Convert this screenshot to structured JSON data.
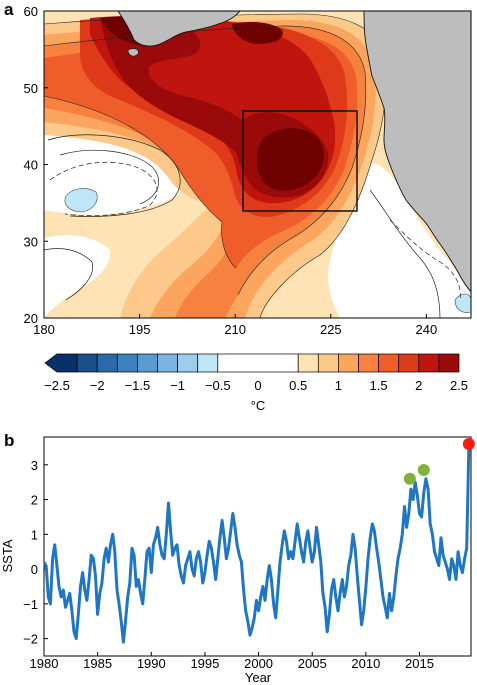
{
  "chart_data": [
    {
      "panel": "a",
      "type": "heatmap",
      "title": "",
      "xlabel": "",
      "ylabel": "",
      "xlim": [
        180,
        247
      ],
      "ylim": [
        20,
        60
      ],
      "x_ticks": [
        "180",
        "195",
        "210",
        "225",
        "240"
      ],
      "y_ticks": [
        "20",
        "30",
        "40",
        "50",
        "60"
      ],
      "box": {
        "lon": [
          213,
          233
        ],
        "lat": [
          34,
          47
        ]
      },
      "colorbar": {
        "label": "°C",
        "tick_labels": [
          "−2.5",
          "−2",
          "−1.5",
          "−1",
          "−0.5",
          "0",
          "0.5",
          "1",
          "1.5",
          "2",
          "2.5"
        ],
        "levels": [
          -2.5,
          -2.25,
          -2,
          -1.75,
          -1.5,
          -1.25,
          -1,
          -0.75,
          -0.5,
          0.5,
          0.75,
          1,
          1.25,
          1.5,
          1.75,
          2,
          2.25,
          2.5
        ],
        "colors": [
          "#08306b",
          "#1b4f8a",
          "#2b6aa8",
          "#3d82bf",
          "#5a9bd1",
          "#7bb4e0",
          "#9dcdee",
          "#bfe6f7",
          "#ffffff",
          "#fee3b4",
          "#fdc98a",
          "#fca55e",
          "#f7823f",
          "#ee5d2a",
          "#de3a1a",
          "#c0140e",
          "#9a0a0a",
          "#6e0000"
        ]
      },
      "land_color": "#bdbdbd"
    },
    {
      "panel": "b",
      "type": "line",
      "title": "",
      "xlabel": "Year",
      "ylabel": "SSTA",
      "xlim": [
        1980,
        2019.8
      ],
      "ylim": [
        -2.5,
        3.8
      ],
      "x_ticks": [
        "1980",
        "1985",
        "1990",
        "1995",
        "2000",
        "2005",
        "2010",
        "2015"
      ],
      "y_ticks": [
        "−2",
        "−1",
        "0",
        "1",
        "2",
        "3"
      ],
      "line_color": "#1f77c4",
      "series": [
        {
          "x": [
            1980.0,
            1980.2,
            1980.4,
            1980.6,
            1980.8,
            1981.0,
            1981.2,
            1981.4,
            1981.6,
            1981.8,
            1982.0,
            1982.2,
            1982.4,
            1982.6,
            1982.8,
            1983.0,
            1983.2,
            1983.4,
            1983.6,
            1983.8,
            1984.0,
            1984.2,
            1984.4,
            1984.6,
            1984.8,
            1985.0,
            1985.2,
            1985.4,
            1985.6,
            1985.8,
            1986.0,
            1986.2,
            1986.4,
            1986.6,
            1986.8,
            1987.0,
            1987.2,
            1987.4,
            1987.6,
            1987.8,
            1988.0,
            1988.2,
            1988.4,
            1988.6,
            1988.8,
            1989.0,
            1989.2,
            1989.4,
            1989.6,
            1989.8,
            1990.0,
            1990.2,
            1990.4,
            1990.6,
            1990.8,
            1991.0,
            1991.2,
            1991.4,
            1991.6,
            1991.8,
            1992.0,
            1992.2,
            1992.4,
            1992.6,
            1992.8,
            1993.0,
            1993.2,
            1993.4,
            1993.6,
            1993.8,
            1994.0,
            1994.2,
            1994.4,
            1994.6,
            1994.8,
            1995.0,
            1995.2,
            1995.4,
            1995.6,
            1995.8,
            1996.0,
            1996.2,
            1996.4,
            1996.6,
            1996.8,
            1997.0,
            1997.2,
            1997.4,
            1997.6,
            1997.8,
            1998.0,
            1998.2,
            1998.4,
            1998.6,
            1998.8,
            1999.0,
            1999.2,
            1999.4,
            1999.6,
            1999.8,
            2000.0,
            2000.2,
            2000.4,
            2000.6,
            2000.8,
            2001.0,
            2001.2,
            2001.4,
            2001.6,
            2001.8,
            2002.0,
            2002.2,
            2002.4,
            2002.6,
            2002.8,
            2003.0,
            2003.2,
            2003.4,
            2003.6,
            2003.8,
            2004.0,
            2004.2,
            2004.4,
            2004.6,
            2004.8,
            2005.0,
            2005.2,
            2005.4,
            2005.6,
            2005.8,
            2006.0,
            2006.2,
            2006.4,
            2006.6,
            2006.8,
            2007.0,
            2007.2,
            2007.4,
            2007.6,
            2007.8,
            2008.0,
            2008.2,
            2008.4,
            2008.6,
            2008.8,
            2009.0,
            2009.2,
            2009.4,
            2009.6,
            2009.8,
            2010.0,
            2010.2,
            2010.4,
            2010.6,
            2010.8,
            2011.0,
            2011.2,
            2011.4,
            2011.6,
            2011.8,
            2012.0,
            2012.2,
            2012.4,
            2012.6,
            2012.8,
            2013.0,
            2013.2,
            2013.4,
            2013.6,
            2013.8,
            2014.0,
            2014.2,
            2014.4,
            2014.6,
            2014.8,
            2015.0,
            2015.2,
            2015.4,
            2015.6,
            2015.8,
            2016.0,
            2016.2,
            2016.4,
            2016.6,
            2016.8,
            2017.0,
            2017.2,
            2017.4,
            2017.6,
            2017.8,
            2018.0,
            2018.2,
            2018.4,
            2018.6,
            2018.8,
            2019.0,
            2019.2,
            2019.4,
            2019.6
          ],
          "y": [
            0.2,
            0.1,
            -0.8,
            -1.0,
            0.3,
            0.7,
            0.1,
            -0.5,
            -0.8,
            -0.6,
            -1.1,
            -0.9,
            -0.7,
            -1.2,
            -1.8,
            -2.0,
            -1.3,
            -0.5,
            -0.1,
            -0.6,
            -0.9,
            -0.3,
            0.4,
            0.3,
            -0.2,
            -1.3,
            -0.7,
            -0.4,
            0.3,
            0.6,
            0.2,
            0.7,
            1.0,
            0.5,
            -0.6,
            -1.0,
            -1.5,
            -2.1,
            -1.5,
            -0.8,
            -0.4,
            0.6,
            0.4,
            -0.5,
            -0.3,
            -0.7,
            -1.0,
            -0.3,
            0.5,
            0.6,
            -0.1,
            0.7,
            0.9,
            1.2,
            0.7,
            0.4,
            0.3,
            1.0,
            1.9,
            1.1,
            0.4,
            0.6,
            0.7,
            0.1,
            -0.2,
            -0.4,
            0.1,
            0.3,
            0.5,
            0.0,
            -0.2,
            0.3,
            0.5,
            0.2,
            -0.4,
            -0.1,
            0.4,
            0.8,
            0.6,
            0.2,
            -0.3,
            0.3,
            0.9,
            1.4,
            0.9,
            0.3,
            0.6,
            1.1,
            1.6,
            1.2,
            0.7,
            0.4,
            0.2,
            -0.6,
            -1.2,
            -1.5,
            -1.9,
            -1.7,
            -1.4,
            -0.9,
            -1.2,
            -0.8,
            -0.5,
            -0.9,
            -0.3,
            0.1,
            -0.3,
            -1.0,
            -1.4,
            -0.6,
            0.2,
            0.7,
            1.1,
            0.8,
            0.3,
            0.5,
            0.3,
            0.8,
            1.3,
            0.9,
            0.5,
            0.2,
            0.8,
            1.1,
            0.6,
            0.2,
            0.5,
            1.2,
            0.7,
            0.2,
            -0.7,
            -1.1,
            -1.8,
            -1.3,
            -0.6,
            -0.3,
            -0.8,
            -1.2,
            -0.7,
            -0.3,
            -0.8,
            -0.5,
            0.1,
            0.4,
            1.0,
            0.6,
            -0.2,
            -0.9,
            -1.6,
            -1.2,
            -0.5,
            0.3,
            0.9,
            1.3,
            1.1,
            0.6,
            0.2,
            -0.3,
            -0.8,
            -1.1,
            -1.4,
            -0.7,
            -1.2,
            -0.8,
            -0.2,
            0.3,
            0.6,
            1.0,
            1.8,
            1.2,
            1.6,
            2.3,
            2.0,
            2.5,
            2.1,
            1.6,
            1.5,
            2.2,
            2.6,
            2.3,
            1.3,
            1.0,
            0.5,
            0.3,
            0.1,
            0.9,
            0.4,
            0.2,
            0.0,
            -0.3,
            0.3,
            0.1,
            -0.3,
            0.5,
            0.1,
            -0.1,
            0.3,
            0.6,
            3.6
          ]
        }
      ],
      "highlights": [
        {
          "x": 2014.1,
          "y": 2.6,
          "color": "#7fb23a"
        },
        {
          "x": 2015.4,
          "y": 2.85,
          "color": "#7fb23a"
        },
        {
          "x": 2019.6,
          "y": 3.6,
          "color": "#ff1a12"
        }
      ]
    }
  ]
}
